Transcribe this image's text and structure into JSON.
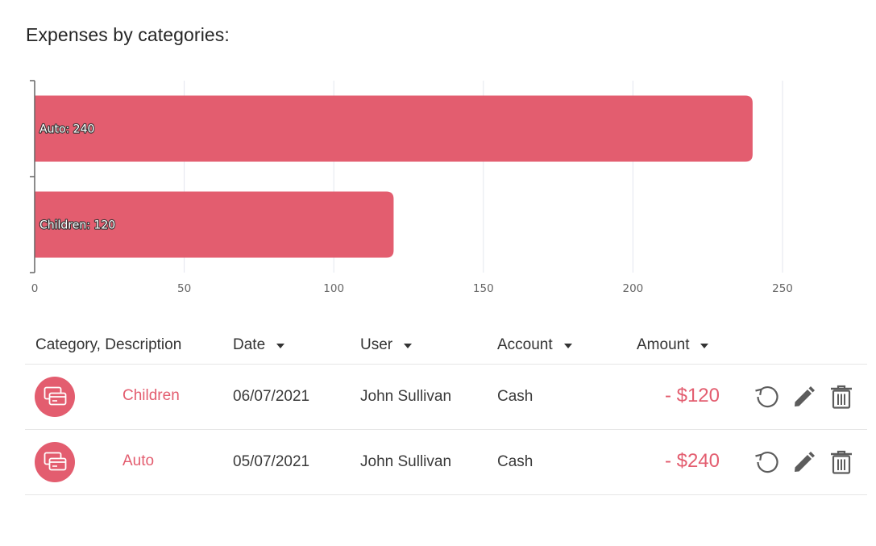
{
  "title": "Expenses by categories:",
  "chart_data": {
    "type": "bar",
    "orientation": "horizontal",
    "categories": [
      "Auto",
      "Children"
    ],
    "values": [
      240,
      120
    ],
    "bar_labels": [
      "Auto: 240",
      "Children: 120"
    ],
    "xlim": [
      0,
      250
    ],
    "xticks": [
      "0",
      "50",
      "100",
      "150",
      "200",
      "250"
    ],
    "grid": true,
    "color": "#e35d6f"
  },
  "table": {
    "headers": {
      "category": "Category, Description",
      "date": "Date",
      "user": "User",
      "account": "Account",
      "amount": "Amount"
    },
    "rows": [
      {
        "category": "Children",
        "date": "06/07/2021",
        "user": "John Sullivan",
        "account": "Cash",
        "amount": "- $120"
      },
      {
        "category": "Auto",
        "date": "05/07/2021",
        "user": "John Sullivan",
        "account": "Cash",
        "amount": "- $240"
      }
    ],
    "icons": {
      "category": "credit-card-icon",
      "repeat": "history-icon",
      "edit": "pencil-icon",
      "delete": "trash-icon"
    }
  },
  "colors": {
    "accent": "#e35d6f",
    "icon": "#5c5c5c",
    "grid": "#e3e6ee"
  }
}
